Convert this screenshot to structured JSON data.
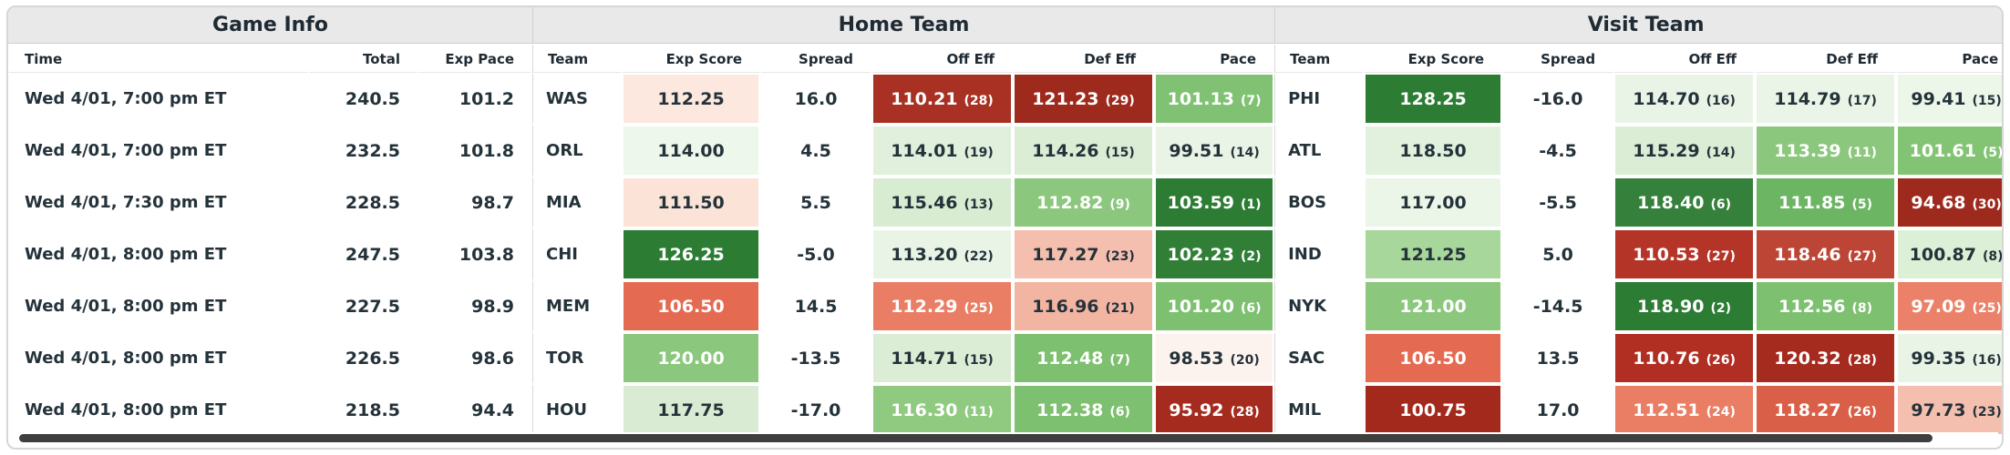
{
  "sections": {
    "game_info": "Game Info",
    "home": "Home Team",
    "visit": "Visit Team"
  },
  "columns": {
    "game_info": [
      "Time",
      "Total",
      "Exp Pace"
    ],
    "team": [
      "Team",
      "Exp Score",
      "Spread",
      "Off Eff",
      "Def Eff",
      "Pace"
    ]
  },
  "rows": [
    {
      "time": "Wed 4/01, 7:00 pm ET",
      "total": "240.5",
      "exp_pace": "101.2",
      "home": {
        "team": "WAS",
        "exp_score": {
          "v": "112.25",
          "bg": "#fce8df",
          "fg": "dark"
        },
        "spread": "16.0",
        "off_eff": {
          "v": "110.21",
          "r": "(28)",
          "bg": "#a93123",
          "fg": "light"
        },
        "def_eff": {
          "v": "121.23",
          "r": "(29)",
          "bg": "#9e2a1e",
          "fg": "light"
        },
        "pace": {
          "v": "101.13",
          "r": "(7)",
          "bg": "#80c173",
          "fg": "light"
        }
      },
      "visit": {
        "team": "PHI",
        "exp_score": {
          "v": "128.25",
          "bg": "#2c7c34",
          "fg": "light"
        },
        "spread": "-16.0",
        "off_eff": {
          "v": "114.70",
          "r": "(16)",
          "bg": "#e9f4e6",
          "fg": "dark"
        },
        "def_eff": {
          "v": "114.79",
          "r": "(17)",
          "bg": "#eaf5e7",
          "fg": "dark"
        },
        "pace": {
          "v": "99.41",
          "r": "(15)",
          "bg": "#ecf6e9",
          "fg": "dark"
        }
      }
    },
    {
      "time": "Wed 4/01, 7:00 pm ET",
      "total": "232.5",
      "exp_pace": "101.8",
      "home": {
        "team": "ORL",
        "exp_score": {
          "v": "114.00",
          "bg": "#eef7eb",
          "fg": "dark"
        },
        "spread": "4.5",
        "off_eff": {
          "v": "114.01",
          "r": "(19)",
          "bg": "#e0f0dc",
          "fg": "dark"
        },
        "def_eff": {
          "v": "114.26",
          "r": "(15)",
          "bg": "#dcedd6",
          "fg": "dark"
        },
        "pace": {
          "v": "99.51",
          "r": "(14)",
          "bg": "#e9f4e6",
          "fg": "dark"
        }
      },
      "visit": {
        "team": "ATL",
        "exp_score": {
          "v": "118.50",
          "bg": "#e2f1de",
          "fg": "dark"
        },
        "spread": "-4.5",
        "off_eff": {
          "v": "115.29",
          "r": "(14)",
          "bg": "#dcedd6",
          "fg": "dark"
        },
        "def_eff": {
          "v": "113.39",
          "r": "(11)",
          "bg": "#8bc77c",
          "fg": "light"
        },
        "pace": {
          "v": "101.61",
          "r": "(5)",
          "bg": "#83c474",
          "fg": "light"
        }
      }
    },
    {
      "time": "Wed 4/01, 7:30 pm ET",
      "total": "228.5",
      "exp_pace": "98.7",
      "home": {
        "team": "MIA",
        "exp_score": {
          "v": "111.50",
          "bg": "#fbe3d8",
          "fg": "dark"
        },
        "spread": "5.5",
        "off_eff": {
          "v": "115.46",
          "r": "(13)",
          "bg": "#d8ecd2",
          "fg": "dark"
        },
        "def_eff": {
          "v": "112.82",
          "r": "(9)",
          "bg": "#8bc77c",
          "fg": "light"
        },
        "pace": {
          "v": "103.59",
          "r": "(1)",
          "bg": "#2c7c34",
          "fg": "light"
        }
      },
      "visit": {
        "team": "BOS",
        "exp_score": {
          "v": "117.00",
          "bg": "#ebf5e8",
          "fg": "dark"
        },
        "spread": "-5.5",
        "off_eff": {
          "v": "118.40",
          "r": "(6)",
          "bg": "#35813b",
          "fg": "light"
        },
        "def_eff": {
          "v": "111.85",
          "r": "(5)",
          "bg": "#6cb562",
          "fg": "light"
        },
        "pace": {
          "v": "94.68",
          "r": "(30)",
          "bg": "#9e2a1e",
          "fg": "light"
        }
      }
    },
    {
      "time": "Wed 4/01, 8:00 pm ET",
      "total": "247.5",
      "exp_pace": "103.8",
      "home": {
        "team": "CHI",
        "exp_score": {
          "v": "126.25",
          "bg": "#2c7c34",
          "fg": "light"
        },
        "spread": "-5.0",
        "off_eff": {
          "v": "113.20",
          "r": "(22)",
          "bg": "#e9f4e6",
          "fg": "dark"
        },
        "def_eff": {
          "v": "117.27",
          "r": "(23)",
          "bg": "#f4bfae",
          "fg": "dark"
        },
        "pace": {
          "v": "102.23",
          "r": "(2)",
          "bg": "#317e37",
          "fg": "light"
        }
      },
      "visit": {
        "team": "IND",
        "exp_score": {
          "v": "121.25",
          "bg": "#a8d79b",
          "fg": "dark"
        },
        "spread": "5.0",
        "off_eff": {
          "v": "110.53",
          "r": "(27)",
          "bg": "#b53428",
          "fg": "light"
        },
        "def_eff": {
          "v": "118.46",
          "r": "(27)",
          "bg": "#bd4535",
          "fg": "light"
        },
        "pace": {
          "v": "100.87",
          "r": "(8)",
          "bg": "#dcefd7",
          "fg": "dark"
        }
      }
    },
    {
      "time": "Wed 4/01, 8:00 pm ET",
      "total": "227.5",
      "exp_pace": "98.9",
      "home": {
        "team": "MEM",
        "exp_score": {
          "v": "106.50",
          "bg": "#e56a52",
          "fg": "light"
        },
        "spread": "14.5",
        "off_eff": {
          "v": "112.29",
          "r": "(25)",
          "bg": "#e97e64",
          "fg": "light"
        },
        "def_eff": {
          "v": "116.96",
          "r": "(21)",
          "bg": "#f2b5a2",
          "fg": "dark"
        },
        "pace": {
          "v": "101.20",
          "r": "(6)",
          "bg": "#7dc06f",
          "fg": "light"
        }
      },
      "visit": {
        "team": "NYK",
        "exp_score": {
          "v": "121.00",
          "bg": "#8bc77c",
          "fg": "light"
        },
        "spread": "-14.5",
        "off_eff": {
          "v": "118.90",
          "r": "(2)",
          "bg": "#2c7c34",
          "fg": "light"
        },
        "def_eff": {
          "v": "112.56",
          "r": "(8)",
          "bg": "#7dc06f",
          "fg": "light"
        },
        "pace": {
          "v": "97.09",
          "r": "(25)",
          "bg": "#ea8168",
          "fg": "light"
        }
      }
    },
    {
      "time": "Wed 4/01, 8:00 pm ET",
      "total": "226.5",
      "exp_pace": "98.6",
      "home": {
        "team": "TOR",
        "exp_score": {
          "v": "120.00",
          "bg": "#8bc77c",
          "fg": "light"
        },
        "spread": "-13.5",
        "off_eff": {
          "v": "114.71",
          "r": "(15)",
          "bg": "#dcedd6",
          "fg": "dark"
        },
        "def_eff": {
          "v": "112.48",
          "r": "(7)",
          "bg": "#7dc06f",
          "fg": "light"
        },
        "pace": {
          "v": "98.53",
          "r": "(20)",
          "bg": "#fdf3ee",
          "fg": "dark"
        }
      },
      "visit": {
        "team": "SAC",
        "exp_score": {
          "v": "106.50",
          "bg": "#e56a52",
          "fg": "light"
        },
        "spread": "13.5",
        "off_eff": {
          "v": "110.76",
          "r": "(26)",
          "bg": "#b02f22",
          "fg": "light"
        },
        "def_eff": {
          "v": "120.32",
          "r": "(28)",
          "bg": "#a52b1f",
          "fg": "light"
        },
        "pace": {
          "v": "99.35",
          "r": "(16)",
          "bg": "#e9f4e6",
          "fg": "dark"
        }
      }
    },
    {
      "time": "Wed 4/01, 8:00 pm ET",
      "total": "218.5",
      "exp_pace": "94.4",
      "home": {
        "team": "HOU",
        "exp_score": {
          "v": "117.75",
          "bg": "#d9ecd3",
          "fg": "dark"
        },
        "spread": "-17.0",
        "off_eff": {
          "v": "116.30",
          "r": "(11)",
          "bg": "#8fca80",
          "fg": "light"
        },
        "def_eff": {
          "v": "112.38",
          "r": "(6)",
          "bg": "#7dc06f",
          "fg": "light"
        },
        "pace": {
          "v": "95.92",
          "r": "(28)",
          "bg": "#a52b1f",
          "fg": "light"
        }
      },
      "visit": {
        "team": "MIL",
        "exp_score": {
          "v": "100.75",
          "bg": "#a2291c",
          "fg": "light"
        },
        "spread": "17.0",
        "off_eff": {
          "v": "112.51",
          "r": "(24)",
          "bg": "#e97e64",
          "fg": "light"
        },
        "def_eff": {
          "v": "118.27",
          "r": "(26)",
          "bg": "#d95f48",
          "fg": "light"
        },
        "pace": {
          "v": "97.73",
          "r": "(23)",
          "bg": "#f4bfae",
          "fg": "dark"
        }
      }
    }
  ],
  "colors": {
    "best": "#2c7c34",
    "worst": "#9e2a1e",
    "header_bg": "#e9e9e9",
    "text": "#24323a"
  }
}
